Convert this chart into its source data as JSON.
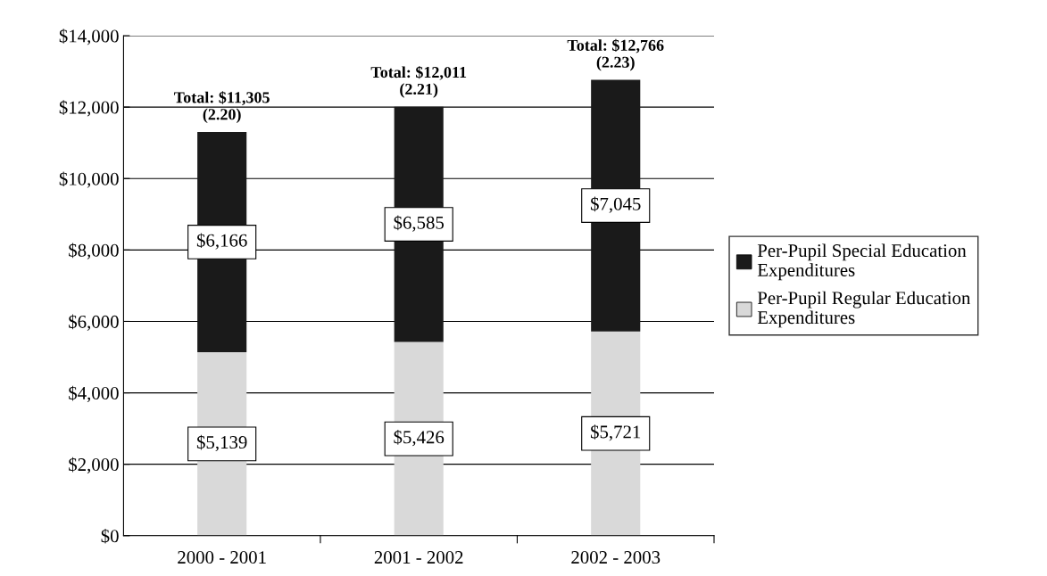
{
  "chart_data": {
    "type": "bar",
    "stacked": true,
    "categories": [
      "2000 - 2001",
      "2001 - 2002",
      "2002 - 2003"
    ],
    "series": [
      {
        "name": "Per-Pupil Regular Education\nExpenditures",
        "color": "#d9d9d9",
        "values": [
          5139,
          5426,
          5721
        ],
        "value_labels": [
          "$5,139",
          "$5,426",
          "$5,721"
        ]
      },
      {
        "name": "Per-Pupil Special Education\nExpenditures",
        "color": "#1a1a1a",
        "values": [
          6166,
          6585,
          7045
        ],
        "value_labels": [
          "$6,166",
          "$6,585",
          "$7,045"
        ]
      }
    ],
    "totals": [
      "Total: $11,305\n(2.20)",
      "Total: $12,011\n(2.21)",
      "Total: $12,766\n(2.23)"
    ],
    "ylim": [
      0,
      14000
    ],
    "yticks": [
      {
        "value": 0,
        "label": "$0"
      },
      {
        "value": 2000,
        "label": "$2,000"
      },
      {
        "value": 4000,
        "label": "$4,000"
      },
      {
        "value": 6000,
        "label": "$6,000"
      },
      {
        "value": 8000,
        "label": "$8,000"
      },
      {
        "value": 10000,
        "label": "$10,000"
      },
      {
        "value": 12000,
        "label": "$12,000"
      },
      {
        "value": 14000,
        "label": "$14,000"
      }
    ],
    "grid": "y",
    "legend": "right"
  }
}
